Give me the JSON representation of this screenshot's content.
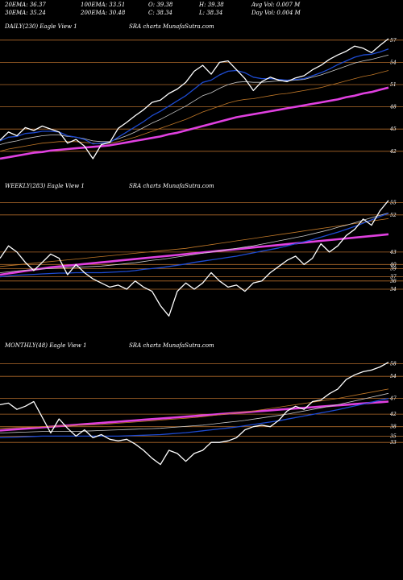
{
  "header": {
    "row1": [
      {
        "label": "20EMA: 36.37"
      },
      {
        "label": "100EMA: 33.51"
      },
      {
        "label": "O: 39.38"
      },
      {
        "label": "H: 39.38"
      },
      {
        "label": "Avg Vol: 0.007 M"
      }
    ],
    "row2": [
      {
        "label": "30EMA: 35.24"
      },
      {
        "label": "200EMA: 30.48"
      },
      {
        "label": "C: 38.34"
      },
      {
        "label": "L: 38.34"
      },
      {
        "label": "Day Vol: 0.004  M"
      }
    ]
  },
  "panels": [
    {
      "title": "DAILY(230) Eagle  View  1",
      "watermark": "SRA charts MunafaSutra.com",
      "ticks": [
        "57",
        "54",
        "51",
        "48",
        "45",
        "42"
      ]
    },
    {
      "title": "WEEKLY(283) Eagle  View  1",
      "watermark": "SRA charts MunafaSutra.com",
      "ticks": [
        "55",
        "52",
        "43",
        "40",
        "39",
        "37",
        "36",
        "34"
      ]
    },
    {
      "title": "MONTHLY(48) Eagle  View  1",
      "watermark": "SRA charts MunafaSutra.com",
      "ticks": [
        "58",
        "54",
        "47",
        "42",
        "38",
        "35",
        "33"
      ]
    }
  ],
  "colors": {
    "price": "#ffffff",
    "ema_short": "#1e4bd2",
    "ema_mid": "#c8c8c8",
    "ema_long": "#c07828",
    "ema_200": "#e040e0",
    "level_line": "#b06a2a"
  },
  "chart_data": [
    {
      "type": "line",
      "title": "DAILY(230) Eagle  View  1",
      "x": [
        0,
        5,
        10,
        15,
        20,
        25,
        30,
        35,
        40,
        45,
        50,
        55,
        60,
        65,
        70,
        75,
        80,
        85,
        90,
        95,
        100,
        105,
        110,
        115,
        120,
        125,
        130,
        135,
        140,
        145,
        150,
        155,
        160,
        165,
        170,
        175,
        180,
        185,
        190,
        195,
        200,
        205,
        210,
        215,
        220,
        225,
        230
      ],
      "levels": [
        57,
        54,
        51,
        48,
        45,
        42
      ],
      "ylim": [
        38.5,
        58.5
      ],
      "series": [
        {
          "key": "price",
          "values": [
            43.5,
            44.6,
            44.1,
            45.2,
            44.8,
            45.4,
            45.0,
            44.6,
            43.1,
            43.6,
            42.7,
            41.0,
            42.9,
            43.2,
            45.1,
            45.9,
            46.8,
            47.6,
            48.6,
            48.9,
            49.8,
            50.4,
            51.3,
            52.8,
            53.6,
            52.4,
            54.0,
            54.2,
            53.0,
            51.8,
            50.2,
            51.4,
            52.0,
            51.6,
            51.4,
            51.9,
            52.2,
            53.0,
            53.6,
            54.4,
            55.0,
            55.5,
            56.2,
            55.9,
            55.3,
            56.3,
            57.2
          ]
        },
        {
          "key": "ema_short",
          "values": [
            43.4,
            43.9,
            44.0,
            44.4,
            44.5,
            44.7,
            44.7,
            44.6,
            44.1,
            43.9,
            43.6,
            43.0,
            43.1,
            43.2,
            43.9,
            44.6,
            45.3,
            46.0,
            46.8,
            47.4,
            48.1,
            48.8,
            49.5,
            50.4,
            51.3,
            51.6,
            52.3,
            52.8,
            52.9,
            52.6,
            52.0,
            51.8,
            51.8,
            51.7,
            51.6,
            51.7,
            51.8,
            52.2,
            52.6,
            53.1,
            53.7,
            54.2,
            54.7,
            55.0,
            55.1,
            55.4,
            55.8
          ]
        },
        {
          "key": "ema_mid",
          "values": [
            42.9,
            43.2,
            43.4,
            43.7,
            43.9,
            44.1,
            44.2,
            44.2,
            44.0,
            43.9,
            43.7,
            43.4,
            43.3,
            43.3,
            43.7,
            44.1,
            44.6,
            45.2,
            45.8,
            46.3,
            46.9,
            47.5,
            48.1,
            48.8,
            49.5,
            49.9,
            50.5,
            51.0,
            51.3,
            51.4,
            51.3,
            51.3,
            51.4,
            51.5,
            51.5,
            51.6,
            51.7,
            52.0,
            52.3,
            52.7,
            53.1,
            53.5,
            53.9,
            54.2,
            54.4,
            54.7,
            55.0
          ]
        },
        {
          "key": "ema_long",
          "values": [
            42.0,
            42.3,
            42.5,
            42.7,
            42.9,
            43.1,
            43.2,
            43.3,
            43.3,
            43.3,
            43.2,
            43.1,
            43.0,
            43.1,
            43.3,
            43.6,
            43.9,
            44.3,
            44.7,
            45.1,
            45.5,
            45.9,
            46.3,
            46.8,
            47.3,
            47.7,
            48.1,
            48.5,
            48.8,
            49.0,
            49.1,
            49.3,
            49.5,
            49.7,
            49.8,
            50.0,
            50.2,
            50.4,
            50.6,
            50.9,
            51.2,
            51.5,
            51.8,
            52.1,
            52.3,
            52.6,
            52.9
          ]
        },
        {
          "key": "ema_200",
          "values": [
            41.0,
            41.2,
            41.4,
            41.6,
            41.8,
            41.9,
            42.1,
            42.2,
            42.3,
            42.4,
            42.5,
            42.6,
            42.7,
            42.8,
            43.0,
            43.2,
            43.4,
            43.6,
            43.8,
            44.0,
            44.3,
            44.5,
            44.8,
            45.1,
            45.4,
            45.7,
            46.0,
            46.3,
            46.6,
            46.8,
            47.0,
            47.2,
            47.4,
            47.6,
            47.8,
            48.0,
            48.2,
            48.4,
            48.6,
            48.8,
            49.0,
            49.3,
            49.5,
            49.8,
            50.0,
            50.3,
            50.6
          ]
        }
      ]
    },
    {
      "type": "line",
      "title": "WEEKLY(283) Eagle  View  1",
      "x": [
        0,
        5,
        10,
        15,
        20,
        25,
        30,
        35,
        40,
        45,
        50,
        55,
        60,
        65,
        70,
        75,
        80,
        85,
        90,
        95,
        100,
        105,
        110,
        115,
        120,
        125,
        130,
        135,
        140,
        145,
        150,
        155,
        160,
        165,
        170,
        175,
        180,
        185,
        190,
        195,
        200,
        205,
        210,
        215,
        220,
        225,
        230
      ],
      "levels": [
        55,
        52,
        43,
        40,
        39,
        37,
        36,
        34
      ],
      "ylim": [
        26,
        58
      ],
      "series": [
        {
          "key": "price",
          "values": [
            41.5,
            44.5,
            43.0,
            40.5,
            38.5,
            40.5,
            42.5,
            41.5,
            37.5,
            40.0,
            38.0,
            36.5,
            35.5,
            34.5,
            35.0,
            34.0,
            36.0,
            34.5,
            33.5,
            30.0,
            27.5,
            33.5,
            35.5,
            34.0,
            35.5,
            38.0,
            36.0,
            34.5,
            35.0,
            33.5,
            35.5,
            36.0,
            38.0,
            39.5,
            41.0,
            42.0,
            40.0,
            41.5,
            45.0,
            43.0,
            44.5,
            47.0,
            48.5,
            51.0,
            49.5,
            53.0,
            55.5
          ]
        },
        {
          "key": "ema_short",
          "values": [
            37.0,
            37.2,
            37.4,
            37.5,
            37.6,
            37.7,
            37.8,
            37.9,
            37.9,
            38.0,
            38.0,
            38.0,
            38.0,
            38.1,
            38.2,
            38.3,
            38.5,
            38.8,
            39.0,
            39.2,
            39.5,
            39.8,
            40.1,
            40.5,
            40.8,
            41.1,
            41.4,
            41.7,
            42.0,
            42.4,
            42.8,
            43.2,
            43.6,
            44.0,
            44.5,
            45.0,
            45.5,
            46.0,
            46.6,
            47.2,
            47.8,
            48.5,
            49.2,
            50.0,
            50.8,
            51.6,
            52.4
          ]
        },
        {
          "key": "ema_mid",
          "values": [
            38.0,
            38.2,
            38.4,
            38.6,
            38.7,
            38.9,
            39.0,
            39.1,
            39.2,
            39.3,
            39.4,
            39.5,
            39.6,
            39.8,
            40.0,
            40.2,
            40.4,
            40.7,
            41.0,
            41.2,
            41.5,
            41.8,
            42.1,
            42.4,
            42.7,
            43.0,
            43.3,
            43.6,
            43.9,
            44.2,
            44.5,
            44.9,
            45.3,
            45.7,
            46.1,
            46.5,
            46.9,
            47.4,
            47.9,
            48.4,
            49.0,
            49.5,
            50.1,
            50.7,
            51.3,
            51.9,
            52.5
          ]
        },
        {
          "key": "ema_long",
          "values": [
            39.5,
            39.7,
            39.9,
            40.1,
            40.3,
            40.5,
            40.7,
            40.9,
            41.1,
            41.3,
            41.5,
            41.7,
            41.9,
            42.1,
            42.3,
            42.5,
            42.7,
            42.9,
            43.1,
            43.3,
            43.5,
            43.7,
            43.9,
            44.2,
            44.5,
            44.8,
            45.1,
            45.4,
            45.7,
            46.0,
            46.3,
            46.6,
            46.9,
            47.2,
            47.5,
            47.8,
            48.1,
            48.4,
            48.7,
            49.0,
            49.3,
            49.6,
            49.9,
            50.2,
            50.5,
            50.8,
            51.1
          ]
        },
        {
          "key": "ema_200",
          "values": [
            37.5,
            37.8,
            38.1,
            38.4,
            38.7,
            39.0,
            39.3,
            39.5,
            39.7,
            39.9,
            40.1,
            40.3,
            40.5,
            40.7,
            40.9,
            41.1,
            41.3,
            41.5,
            41.7,
            41.9,
            42.1,
            42.3,
            42.5,
            42.7,
            42.9,
            43.1,
            43.3,
            43.5,
            43.7,
            43.9,
            44.1,
            44.3,
            44.5,
            44.7,
            44.9,
            45.1,
            45.3,
            45.5,
            45.7,
            45.9,
            46.1,
            46.3,
            46.5,
            46.7,
            46.9,
            47.1,
            47.3
          ]
        }
      ]
    },
    {
      "type": "line",
      "title": "MONTHLY(48) Eagle  View  1",
      "x": [
        0,
        5,
        10,
        15,
        20,
        25,
        30,
        35,
        40,
        45,
        50,
        55,
        60,
        65,
        70,
        75,
        80,
        85,
        90,
        95,
        100,
        105,
        110,
        115,
        120,
        125,
        130,
        135,
        140,
        145,
        150,
        155,
        160,
        165,
        170,
        175,
        180,
        185,
        190,
        195,
        200,
        205,
        210,
        215,
        220,
        225,
        230
      ],
      "levels": [
        58,
        54,
        47,
        42,
        38,
        35,
        33
      ],
      "ylim": [
        20,
        62
      ],
      "series": [
        {
          "key": "price",
          "values": [
            45.0,
            45.5,
            43.5,
            44.5,
            46.0,
            41.0,
            36.0,
            40.5,
            37.5,
            35.0,
            37.0,
            34.5,
            35.5,
            34.0,
            33.5,
            34.0,
            32.5,
            30.5,
            28.0,
            26.0,
            30.5,
            29.5,
            27.0,
            29.5,
            30.5,
            33.0,
            33.0,
            33.5,
            34.5,
            37.0,
            38.0,
            38.5,
            38.0,
            40.0,
            43.0,
            44.5,
            43.5,
            46.0,
            46.5,
            48.5,
            50.0,
            53.0,
            54.5,
            55.5,
            56.0,
            57.0,
            58.5
          ]
        },
        {
          "key": "ema_short",
          "values": [
            34.5,
            34.6,
            34.7,
            34.8,
            34.9,
            35.0,
            35.0,
            35.0,
            35.0,
            35.0,
            35.0,
            35.0,
            35.0,
            35.0,
            35.0,
            35.1,
            35.2,
            35.3,
            35.4,
            35.5,
            35.7,
            35.9,
            36.1,
            36.4,
            36.7,
            37.0,
            37.3,
            37.6,
            37.9,
            38.3,
            38.7,
            39.1,
            39.5,
            39.9,
            40.4,
            40.9,
            41.4,
            41.9,
            42.4,
            42.9,
            43.4,
            44.0,
            44.6,
            45.2,
            45.8,
            46.4,
            47.0
          ]
        },
        {
          "key": "ema_mid",
          "values": [
            36.0,
            36.1,
            36.2,
            36.3,
            36.4,
            36.5,
            36.5,
            36.5,
            36.5,
            36.5,
            36.6,
            36.7,
            36.8,
            36.9,
            37.0,
            37.1,
            37.2,
            37.3,
            37.4,
            37.5,
            37.7,
            37.9,
            38.1,
            38.3,
            38.5,
            38.8,
            39.1,
            39.4,
            39.7,
            40.0,
            40.4,
            40.8,
            41.2,
            41.6,
            42.0,
            42.5,
            43.0,
            43.5,
            44.0,
            44.5,
            45.0,
            45.6,
            46.2,
            46.8,
            47.4,
            48.0,
            48.6
          ]
        },
        {
          "key": "ema_long",
          "values": [
            37.5,
            37.6,
            37.7,
            37.8,
            37.9,
            38.0,
            38.1,
            38.2,
            38.3,
            38.4,
            38.5,
            38.6,
            38.7,
            38.9,
            39.1,
            39.3,
            39.5,
            39.7,
            39.9,
            40.1,
            40.3,
            40.5,
            40.7,
            40.9,
            41.2,
            41.5,
            41.8,
            42.1,
            42.4,
            42.7,
            43.0,
            43.4,
            43.8,
            44.2,
            44.6,
            45.0,
            45.4,
            45.8,
            46.2,
            46.6,
            47.0,
            47.5,
            48.0,
            48.5,
            49.0,
            49.5,
            50.0
          ]
        },
        {
          "key": "ema_200",
          "values": [
            36.8,
            37.0,
            37.2,
            37.4,
            37.6,
            37.8,
            38.0,
            38.2,
            38.4,
            38.6,
            38.8,
            39.0,
            39.2,
            39.4,
            39.6,
            39.8,
            40.0,
            40.2,
            40.4,
            40.6,
            40.8,
            41.0,
            41.2,
            41.4,
            41.6,
            41.8,
            42.0,
            42.2,
            42.4,
            42.6,
            42.8,
            43.0,
            43.2,
            43.4,
            43.6,
            43.8,
            44.0,
            44.2,
            44.4,
            44.6,
            44.8,
            45.0,
            45.2,
            45.4,
            45.6,
            45.8,
            46.0
          ]
        }
      ]
    }
  ]
}
